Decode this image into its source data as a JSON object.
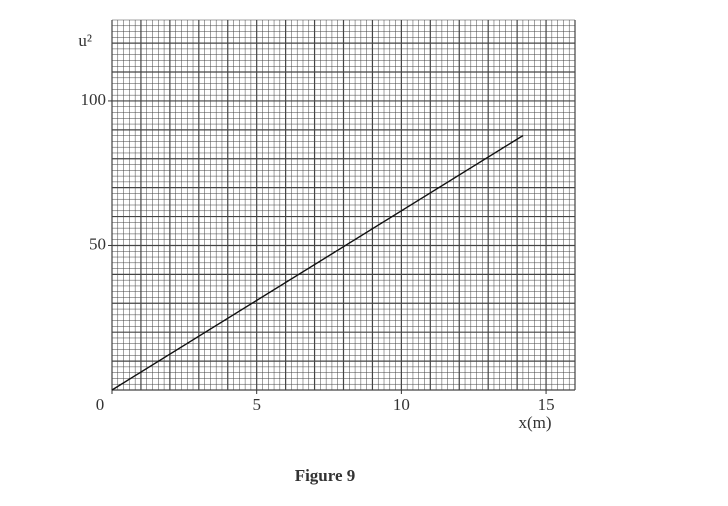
{
  "chart_data": {
    "type": "line",
    "caption": "Figure 9",
    "y_label": "u²",
    "x_label": "x(m)",
    "x": [
      0,
      14.2
    ],
    "series": [
      {
        "color": "#111111",
        "values": [
          0,
          88
        ]
      }
    ],
    "xlim": [
      0,
      16
    ],
    "ylim": [
      0,
      128
    ],
    "xticks": [
      0,
      5,
      10,
      15
    ],
    "yticks": [
      50,
      100
    ],
    "grid": true
  }
}
